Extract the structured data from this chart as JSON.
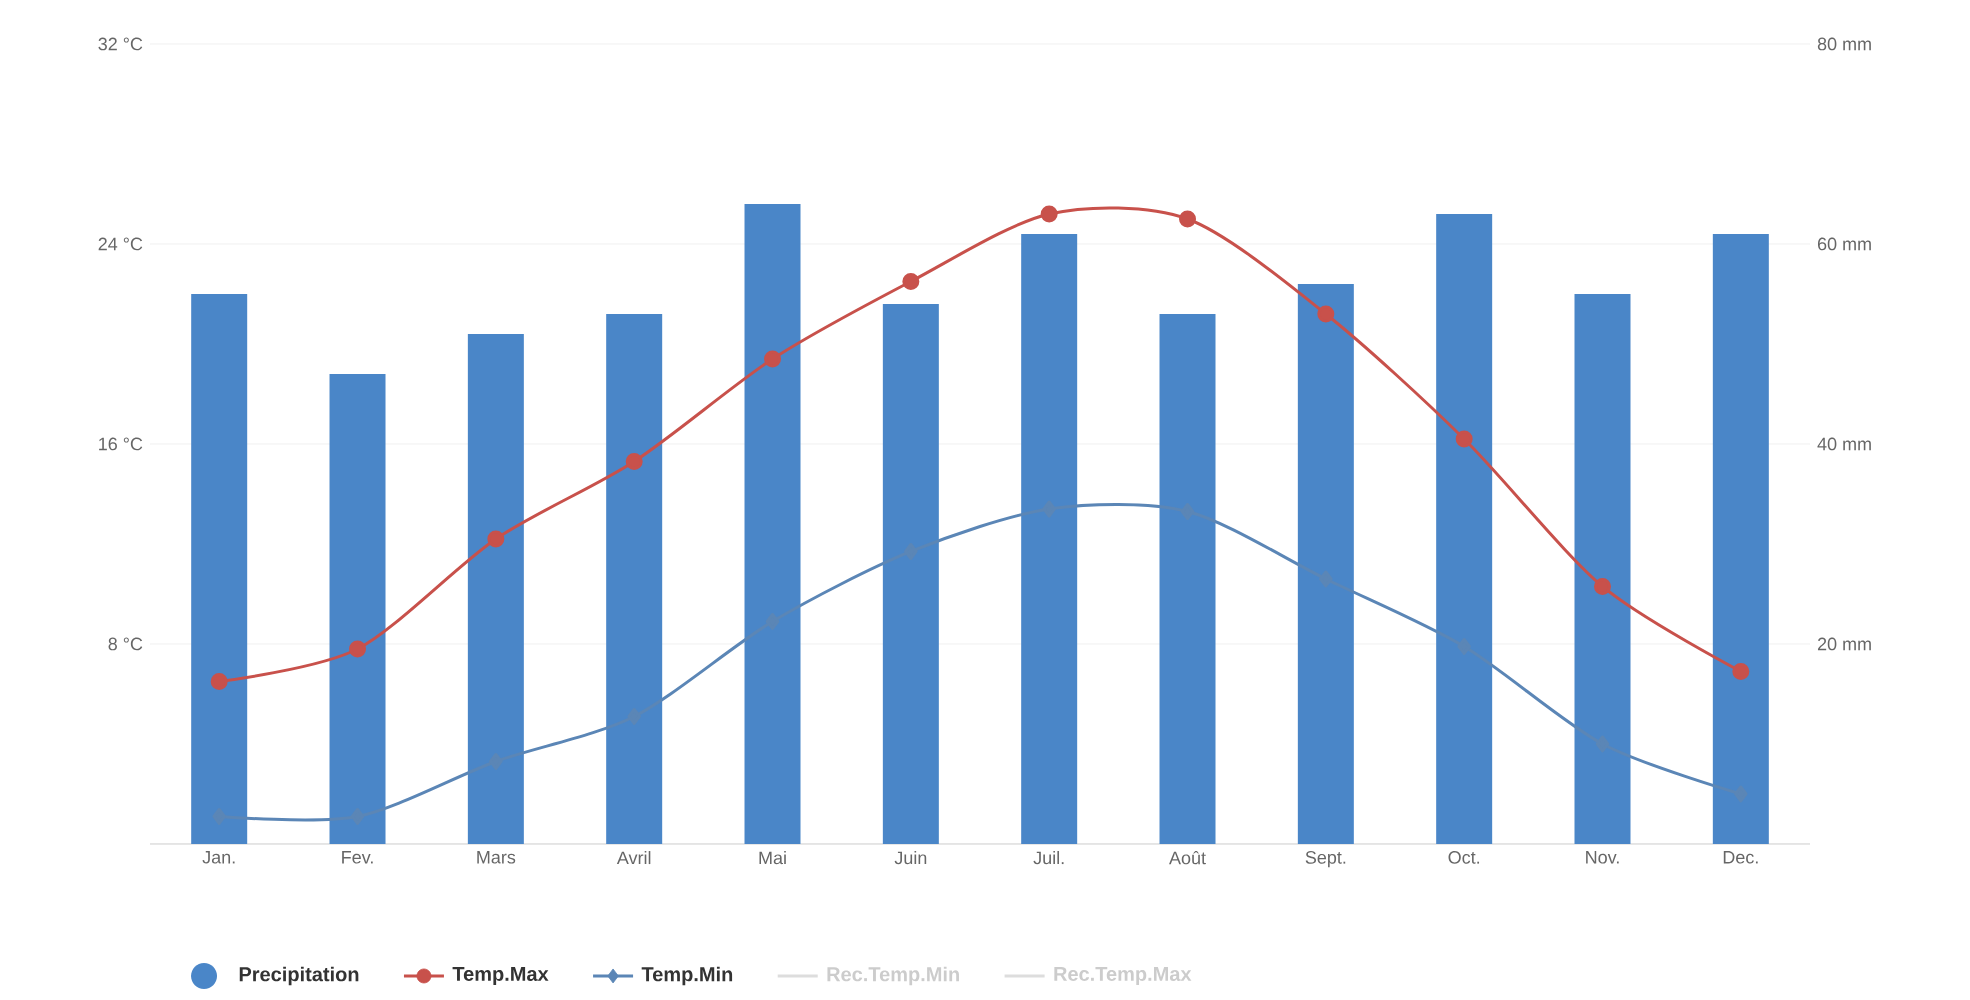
{
  "chart_data": {
    "type": "line",
    "categories": [
      "Jan.",
      "Fev.",
      "Mars",
      "Avril",
      "Mai",
      "Juin",
      "Juil.",
      "Août",
      "Sept.",
      "Oct.",
      "Nov.",
      "Dec."
    ],
    "series": [
      {
        "name": "Precipitation",
        "type": "bar",
        "axis": "y2",
        "color": "#4a86c8",
        "values": [
          55,
          47,
          51,
          53,
          64,
          54,
          61,
          53,
          56,
          63,
          55,
          61
        ]
      },
      {
        "name": "Temp.Max",
        "color": "#c8514b",
        "marker": "circle",
        "values": [
          6.5,
          7.8,
          12.2,
          15.3,
          19.4,
          22.5,
          25.2,
          25.0,
          21.2,
          16.2,
          10.3,
          6.9
        ]
      },
      {
        "name": "Temp.Min",
        "color": "#5b86b6",
        "marker": "diamond",
        "values": [
          1.1,
          1.1,
          3.3,
          5.1,
          8.9,
          11.7,
          13.4,
          13.3,
          10.6,
          7.9,
          4.0,
          2.0
        ]
      },
      {
        "name": "Rec.Temp.Min",
        "color": "#dddddd",
        "values": [
          null,
          null,
          null,
          null,
          null,
          null,
          null,
          null,
          null,
          null,
          null,
          null
        ]
      },
      {
        "name": "Rec.Temp.Max",
        "color": "#dddddd",
        "values": [
          null,
          null,
          null,
          null,
          null,
          null,
          null,
          null,
          null,
          null,
          null,
          null
        ]
      }
    ],
    "ylim": [
      0,
      32
    ],
    "yticks": [
      {
        "value": 8,
        "label": "8 °C"
      },
      {
        "value": 16,
        "label": "16 °C"
      },
      {
        "value": 24,
        "label": "24 °C"
      },
      {
        "value": 32,
        "label": "32 °C"
      }
    ],
    "y2lim": [
      0,
      80
    ],
    "y2ticks": [
      {
        "value": 20,
        "label": "20 mm"
      },
      {
        "value": 40,
        "label": "40 mm"
      },
      {
        "value": 60,
        "label": "60 mm"
      },
      {
        "value": 80,
        "label": "80 mm"
      }
    ],
    "grid": "y",
    "legend": "bottom"
  }
}
